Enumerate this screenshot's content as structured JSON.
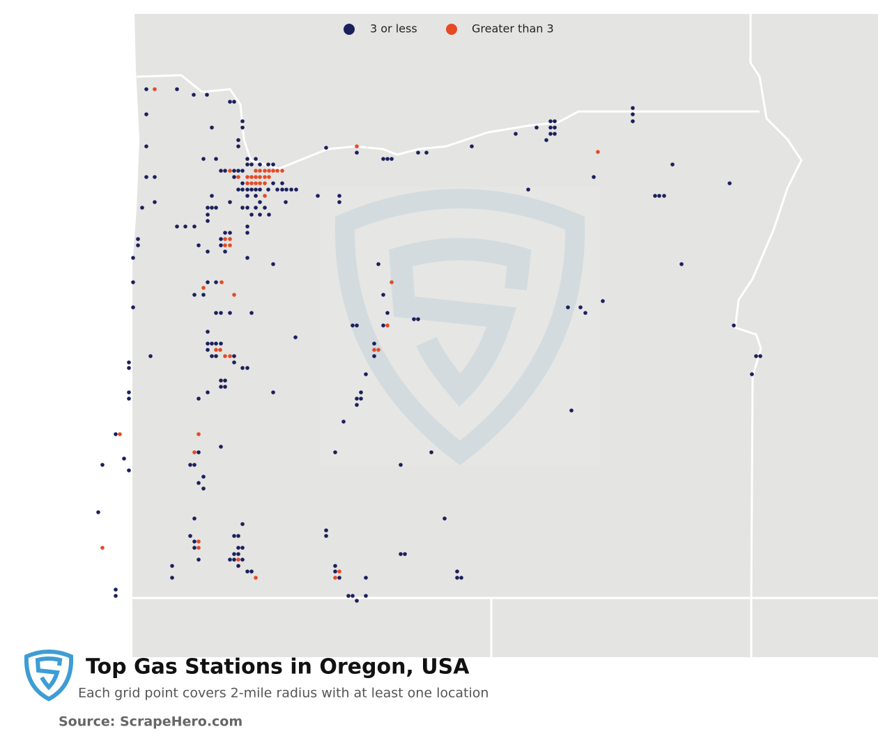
{
  "legend": [
    {
      "label": "3 or less",
      "color": "#1b1f5c"
    },
    {
      "label": "Greater than 3",
      "color": "#e64a25"
    }
  ],
  "title": "Top Gas Stations in Oregon, USA",
  "subtitle": "Each grid point covers 2-mile radius with at least one location",
  "source": "Source: ScrapeHero.com"
}
